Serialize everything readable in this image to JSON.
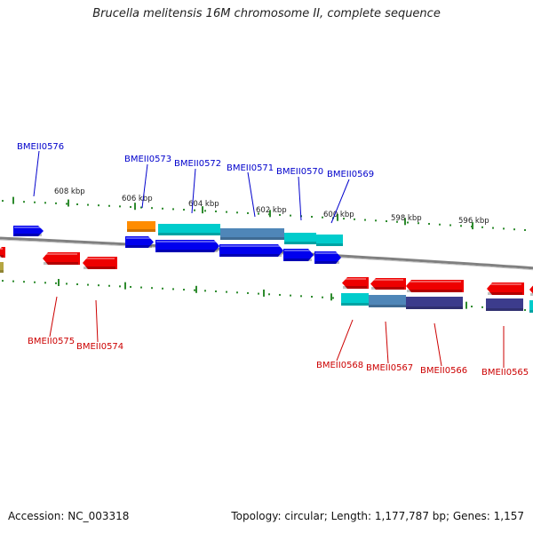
{
  "title": "Brucella melitensis 16M chromosome II, complete sequence",
  "footer": {
    "accession": "Accession: NC_003318",
    "topology": "Topology: circular; Length: 1,177,787 bp; Genes: 1,157"
  },
  "colors": {
    "tick_green": "#2e8b2e",
    "backbone": "#808080",
    "label_blue": "#0000cc",
    "label_red": "#cc0000",
    "gene_blue": "#0000ee",
    "gene_red": "#ee0000",
    "gene_orange": "#ff8c00",
    "gene_olive": "#b5a642",
    "cds_cyan": "#00cccc",
    "cds_steel": "#4f86b8",
    "cds_slate": "#3c3c8c"
  },
  "scale_labels": [
    "608 kbp",
    "606 kbp",
    "604 kbp",
    "602 kbp",
    "600 kbp",
    "598 kbp",
    "596 kbp"
  ],
  "gene_labels_top": [
    "BMEII0576",
    "BMEII0573",
    "BMEII0572",
    "BMEII0571",
    "BMEII0570",
    "BMEII0569"
  ],
  "gene_labels_bottom": [
    "BMEII0575",
    "BMEII0574",
    "BMEII0568",
    "BMEII0567",
    "BMEII0566",
    "BMEII0565"
  ]
}
